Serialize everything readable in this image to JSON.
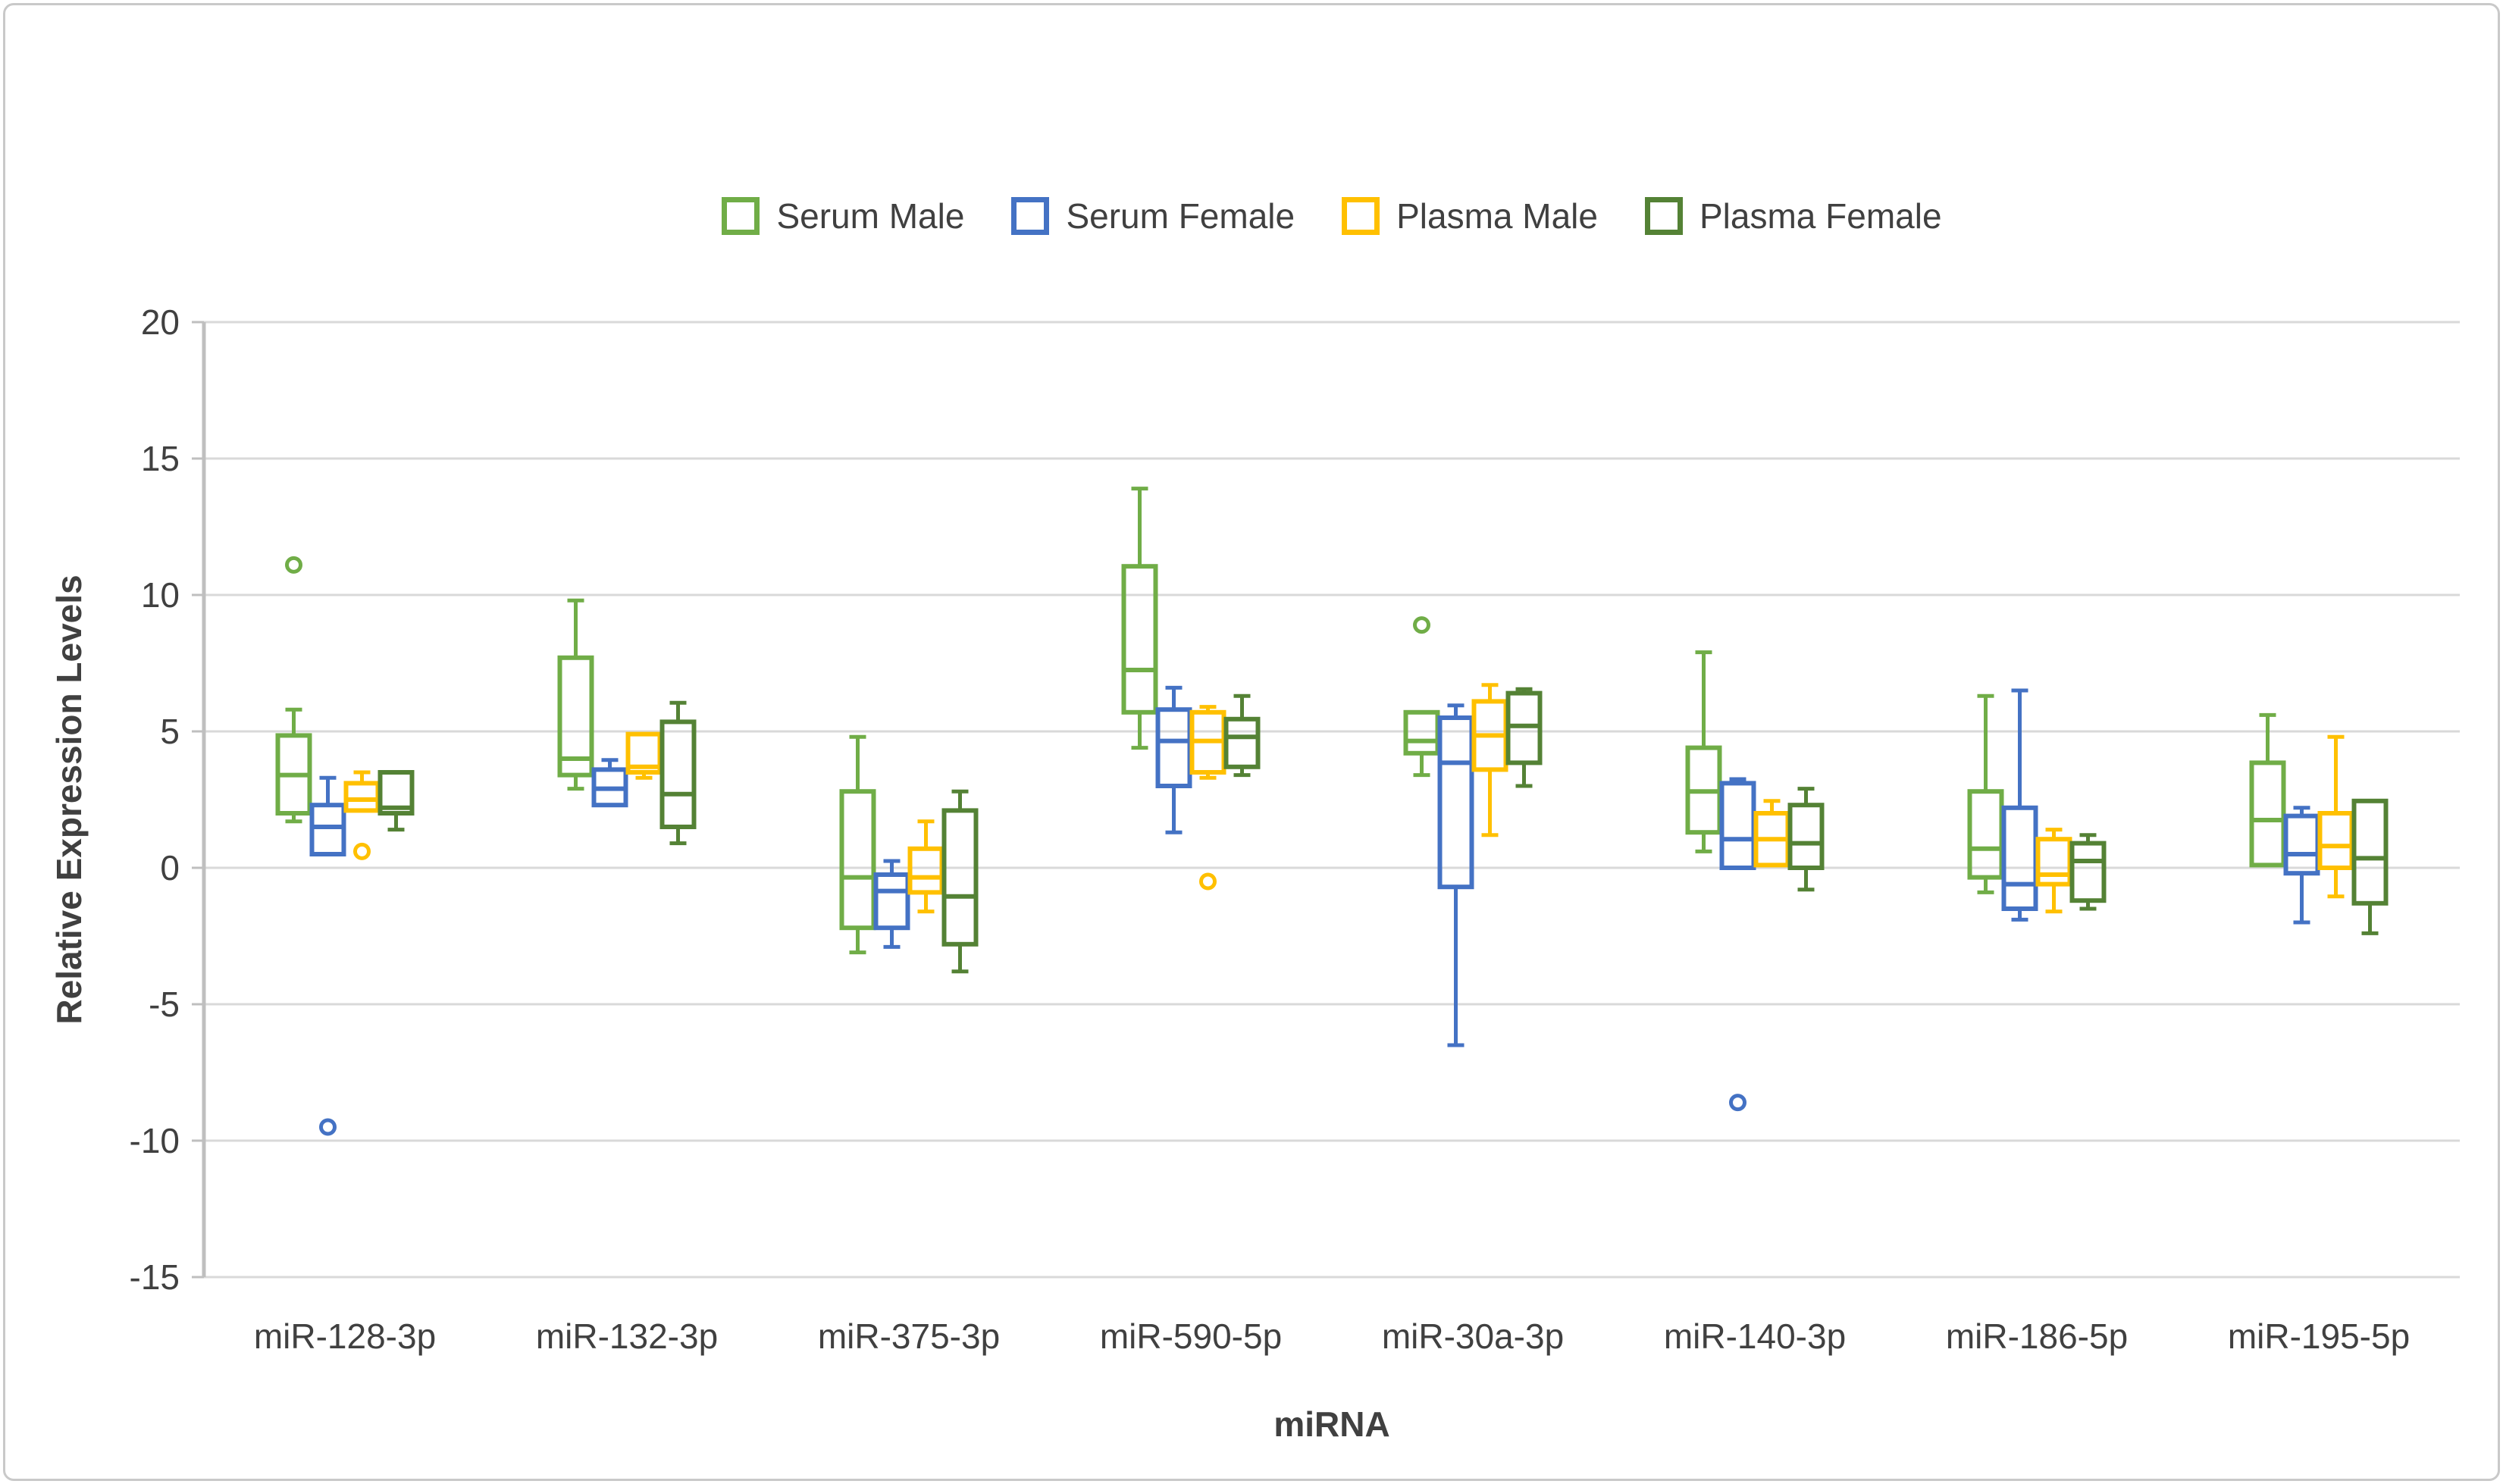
{
  "chart_data": {
    "type": "boxplot",
    "title": "",
    "xlabel": "miRNA",
    "ylabel": "Relative Expression Levels",
    "ylim": [
      -15,
      20
    ],
    "ytick_step": 5,
    "yticks": [
      20,
      15,
      10,
      5,
      0,
      -5,
      -10,
      -15
    ],
    "grid": true,
    "legend_position": "top-center",
    "style": {
      "grid_color": "#d9d9d9",
      "axis_color": "#bfbfbf",
      "text_color": "#404040",
      "frame_color": "#c9c9c9",
      "box_fill": "none"
    },
    "categories": [
      "miR-128-3p",
      "miR-132-3p",
      "miR-375-3p",
      "miR-590-5p",
      "miR-30a-3p",
      "miR-140-3p",
      "miR-186-5p",
      "miR-195-5p"
    ],
    "series": [
      {
        "name": "Serum Male",
        "color": "#70AD47",
        "boxes": [
          {
            "low": 1.7,
            "q1": 2.0,
            "median": 3.4,
            "q3": 4.85,
            "high": 5.8,
            "outliers": [
              11.1
            ]
          },
          {
            "low": 2.9,
            "q1": 3.4,
            "median": 4.0,
            "q3": 7.7,
            "high": 9.8,
            "outliers": []
          },
          {
            "low": -3.1,
            "q1": -2.2,
            "median": -0.35,
            "q3": 2.8,
            "high": 4.8,
            "outliers": []
          },
          {
            "low": 4.4,
            "q1": 5.7,
            "median": 7.25,
            "q3": 11.05,
            "high": 13.9,
            "outliers": []
          },
          {
            "low": 3.4,
            "q1": 4.2,
            "median": 4.65,
            "q3": 5.7,
            "high": 5.7,
            "outliers": [
              8.9
            ]
          },
          {
            "low": 0.6,
            "q1": 1.3,
            "median": 2.8,
            "q3": 4.4,
            "high": 7.9,
            "outliers": []
          },
          {
            "low": -0.9,
            "q1": -0.35,
            "median": 0.7,
            "q3": 2.8,
            "high": 6.3,
            "outliers": []
          },
          {
            "low": 0.1,
            "q1": 0.1,
            "median": 1.75,
            "q3": 3.85,
            "high": 5.6,
            "outliers": []
          }
        ]
      },
      {
        "name": "Serum Female",
        "color": "#4472C4",
        "boxes": [
          {
            "low": 0.5,
            "q1": 0.5,
            "median": 1.5,
            "q3": 2.3,
            "high": 3.3,
            "outliers": [
              -9.5
            ]
          },
          {
            "low": 2.3,
            "q1": 2.3,
            "median": 2.9,
            "q3": 3.6,
            "high": 3.95,
            "outliers": []
          },
          {
            "low": -2.9,
            "q1": -2.2,
            "median": -0.85,
            "q3": -0.25,
            "high": 0.25,
            "outliers": []
          },
          {
            "low": 1.3,
            "q1": 3.0,
            "median": 4.65,
            "q3": 5.8,
            "high": 6.6,
            "outliers": []
          },
          {
            "low": -6.5,
            "q1": -0.7,
            "median": 3.85,
            "q3": 5.5,
            "high": 5.95,
            "outliers": []
          },
          {
            "low": 0.0,
            "q1": 0.0,
            "median": 1.05,
            "q3": 3.1,
            "high": 3.25,
            "outliers": [
              -8.6
            ]
          },
          {
            "low": -1.9,
            "q1": -1.5,
            "median": -0.6,
            "q3": 2.2,
            "high": 6.5,
            "outliers": []
          },
          {
            "low": -2.0,
            "q1": -0.2,
            "median": 0.5,
            "q3": 1.9,
            "high": 2.2,
            "outliers": []
          }
        ]
      },
      {
        "name": "Plasma Male",
        "color": "#FFC000",
        "boxes": [
          {
            "low": 2.0,
            "q1": 2.1,
            "median": 2.5,
            "q3": 3.1,
            "high": 3.5,
            "outliers": [
              0.6
            ]
          },
          {
            "low": 3.3,
            "q1": 3.5,
            "median": 3.7,
            "q3": 4.9,
            "high": 4.9,
            "outliers": []
          },
          {
            "low": -1.6,
            "q1": -0.9,
            "median": -0.35,
            "q3": 0.7,
            "high": 1.7,
            "outliers": []
          },
          {
            "low": 3.3,
            "q1": 3.5,
            "median": 4.65,
            "q3": 5.7,
            "high": 5.9,
            "outliers": [
              -0.5
            ]
          },
          {
            "low": 1.2,
            "q1": 3.6,
            "median": 4.85,
            "q3": 6.1,
            "high": 6.7,
            "outliers": []
          },
          {
            "low": 0.0,
            "q1": 0.1,
            "median": 1.05,
            "q3": 2.0,
            "high": 2.45,
            "outliers": []
          },
          {
            "low": -1.6,
            "q1": -0.6,
            "median": -0.25,
            "q3": 1.05,
            "high": 1.4,
            "outliers": []
          },
          {
            "low": -1.05,
            "q1": 0.0,
            "median": 0.8,
            "q3": 2.0,
            "high": 4.8,
            "outliers": []
          }
        ]
      },
      {
        "name": "Plasma Female",
        "color": "#548235",
        "boxes": [
          {
            "low": 1.4,
            "q1": 2.0,
            "median": 2.2,
            "q3": 3.5,
            "high": 3.5,
            "outliers": []
          },
          {
            "low": 0.9,
            "q1": 1.5,
            "median": 2.7,
            "q3": 5.35,
            "high": 6.05,
            "outliers": []
          },
          {
            "low": -3.8,
            "q1": -2.8,
            "median": -1.05,
            "q3": 2.1,
            "high": 2.8,
            "outliers": []
          },
          {
            "low": 3.4,
            "q1": 3.7,
            "median": 4.8,
            "q3": 5.45,
            "high": 6.3,
            "outliers": []
          },
          {
            "low": 3.0,
            "q1": 3.85,
            "median": 5.2,
            "q3": 6.4,
            "high": 6.55,
            "outliers": []
          },
          {
            "low": -0.8,
            "q1": 0.0,
            "median": 0.9,
            "q3": 2.3,
            "high": 2.9,
            "outliers": []
          },
          {
            "low": -1.5,
            "q1": -1.2,
            "median": 0.25,
            "q3": 0.9,
            "high": 1.2,
            "outliers": []
          },
          {
            "low": -2.4,
            "q1": -1.3,
            "median": 0.35,
            "q3": 2.45,
            "high": 2.5,
            "outliers": []
          }
        ]
      }
    ]
  }
}
